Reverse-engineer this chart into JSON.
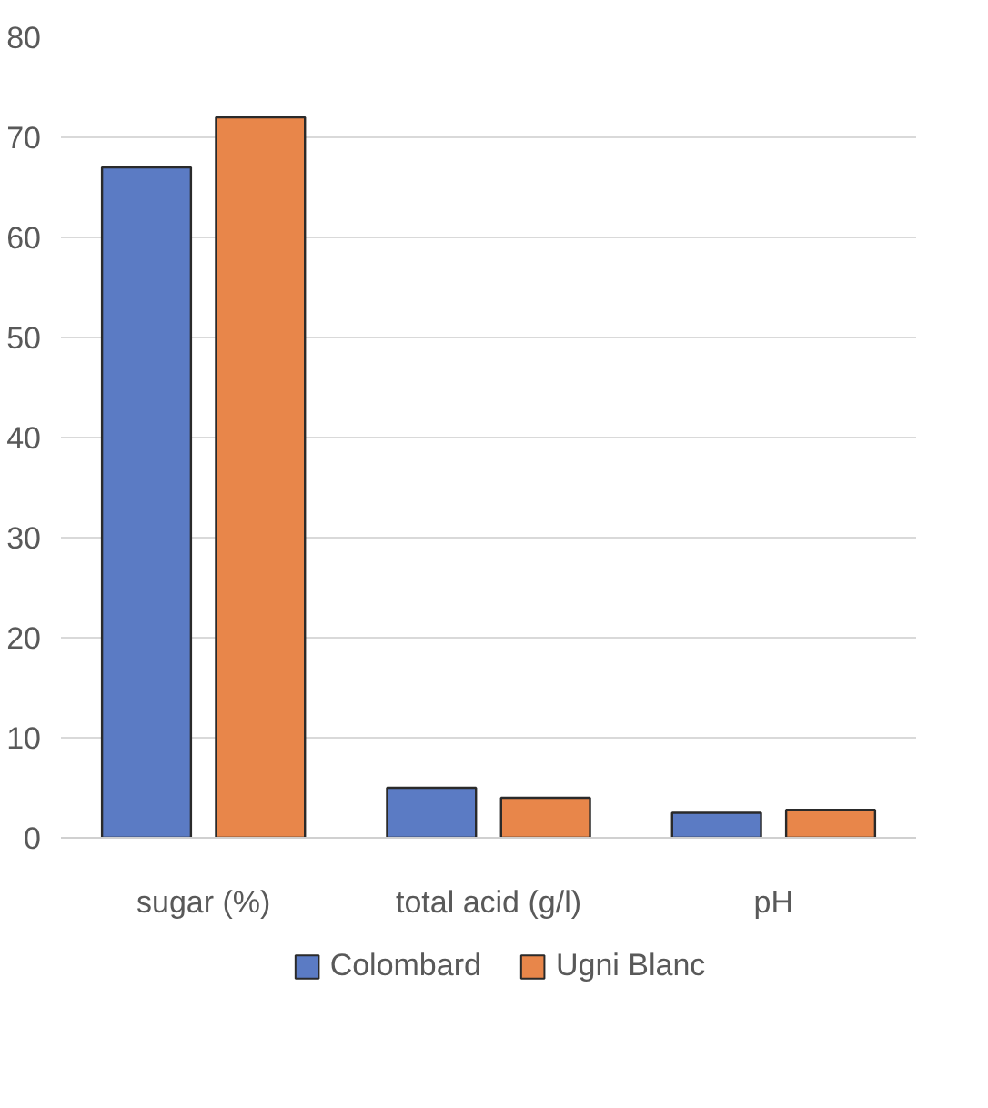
{
  "chart_data": {
    "type": "bar",
    "categories": [
      "sugar (%)",
      "total acid (g/l)",
      "pH"
    ],
    "series": [
      {
        "name": "Colombard",
        "color": "#5b7bc4",
        "values": [
          67,
          5,
          2.5
        ]
      },
      {
        "name": "Ugni Blanc",
        "color": "#e8864a",
        "values": [
          72,
          4,
          2.8
        ]
      }
    ],
    "ylim": [
      0,
      80
    ],
    "yticks": [
      0,
      10,
      20,
      30,
      40,
      50,
      60,
      70,
      80
    ],
    "grid": "y",
    "legend": "bottom"
  }
}
